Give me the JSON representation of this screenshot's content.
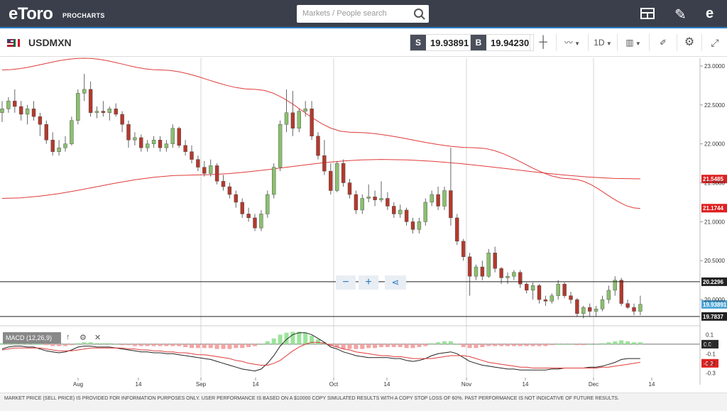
{
  "header": {
    "logo_text": "eToro",
    "logo_sub": "PROCHARTS",
    "search_placeholder": "Markets / People search"
  },
  "toolbar": {
    "symbol": "USDMXN",
    "sell_tag": "S",
    "sell_price": "19.93891",
    "buy_tag": "B",
    "buy_price": "19.94230",
    "timeframe": "1D"
  },
  "zoom": {
    "minus": "−",
    "plus": "+"
  },
  "macd": {
    "label": "MACD (12,26,9)"
  },
  "colors": {
    "up": "#8bbf6f",
    "down": "#b23a2e",
    "ma": "#e03a3a",
    "accent": "#2b7cc4"
  },
  "chart_data": {
    "type": "candlestick",
    "title": "USDMXN",
    "x_ticks": [
      "Aug",
      "14",
      "Sep",
      "14",
      "Oct",
      "14",
      "Nov",
      "14",
      "Dec",
      "14"
    ],
    "y_ticks": [
      "23.0000",
      "22.5000",
      "22.0000",
      "21.5000",
      "21.0000",
      "20.5000",
      "20.0000"
    ],
    "y_range": [
      19.7,
      23.1
    ],
    "price_labels": [
      {
        "value": "21.5485",
        "color": "#e02020"
      },
      {
        "value": "21.1744",
        "color": "#e02020"
      },
      {
        "value": "20.2296",
        "color": "#222"
      },
      {
        "value": "19.93891",
        "color": "#4aa3d6"
      },
      {
        "value": "19.7837",
        "color": "#222"
      }
    ],
    "hlines": [
      20.2296,
      19.7837
    ],
    "macd_ticks": [
      "0.1",
      "0.0",
      "-0.1",
      "-0.2",
      "-0.3"
    ],
    "macd_range": [
      -0.35,
      0.17
    ],
    "macd_labels": [
      {
        "value": "0.0",
        "color": "#fff",
        "bg": "#2a2a2a"
      },
      {
        "value": "-0.2",
        "color": "#fff",
        "bg": "#e02020"
      }
    ],
    "candles": [
      [
        22.4,
        22.55,
        22.28,
        22.45
      ],
      [
        22.45,
        22.6,
        22.4,
        22.55
      ],
      [
        22.55,
        22.7,
        22.4,
        22.48
      ],
      [
        22.48,
        22.55,
        22.3,
        22.38
      ],
      [
        22.38,
        22.5,
        22.25,
        22.45
      ],
      [
        22.45,
        22.55,
        22.3,
        22.35
      ],
      [
        22.35,
        22.4,
        22.1,
        22.25
      ],
      [
        22.25,
        22.3,
        22.0,
        22.05
      ],
      [
        22.05,
        22.15,
        21.85,
        21.9
      ],
      [
        21.9,
        22.05,
        21.85,
        21.95
      ],
      [
        21.95,
        22.1,
        21.9,
        22.0
      ],
      [
        22.0,
        22.35,
        21.98,
        22.3
      ],
      [
        22.3,
        22.7,
        22.25,
        22.65
      ],
      [
        22.65,
        22.9,
        22.55,
        22.7
      ],
      [
        22.7,
        22.8,
        22.35,
        22.4
      ],
      [
        22.4,
        22.48,
        22.33,
        22.42
      ],
      [
        22.42,
        22.55,
        22.35,
        22.4
      ],
      [
        22.4,
        22.48,
        22.3,
        22.45
      ],
      [
        22.45,
        22.52,
        22.35,
        22.38
      ],
      [
        22.38,
        22.42,
        22.15,
        22.25
      ],
      [
        22.25,
        22.3,
        21.95,
        22.05
      ],
      [
        22.05,
        22.15,
        21.98,
        22.08
      ],
      [
        22.08,
        22.12,
        21.9,
        21.95
      ],
      [
        21.95,
        22.05,
        21.9,
        22.0
      ],
      [
        22.0,
        22.1,
        21.95,
        22.05
      ],
      [
        22.05,
        22.1,
        21.9,
        21.95
      ],
      [
        21.95,
        22.05,
        21.9,
        22.0
      ],
      [
        22.0,
        22.25,
        21.95,
        22.2
      ],
      [
        22.2,
        22.22,
        21.95,
        21.98
      ],
      [
        21.98,
        22.05,
        21.85,
        21.9
      ],
      [
        21.9,
        21.98,
        21.75,
        21.8
      ],
      [
        21.8,
        21.85,
        21.65,
        21.7
      ],
      [
        21.7,
        21.78,
        21.58,
        21.62
      ],
      [
        21.62,
        21.8,
        21.58,
        21.72
      ],
      [
        21.72,
        21.75,
        21.48,
        21.52
      ],
      [
        21.52,
        21.6,
        21.4,
        21.45
      ],
      [
        21.45,
        21.5,
        21.3,
        21.35
      ],
      [
        21.35,
        21.4,
        21.18,
        21.25
      ],
      [
        21.25,
        21.3,
        21.05,
        21.1
      ],
      [
        21.1,
        21.18,
        21.0,
        21.05
      ],
      [
        21.05,
        21.1,
        20.88,
        20.92
      ],
      [
        20.92,
        21.15,
        20.88,
        21.1
      ],
      [
        21.1,
        21.4,
        21.05,
        21.35
      ],
      [
        21.35,
        21.75,
        21.3,
        21.7
      ],
      [
        21.7,
        22.3,
        21.65,
        22.25
      ],
      [
        22.25,
        22.7,
        22.15,
        22.4
      ],
      [
        22.4,
        22.68,
        22.1,
        22.2
      ],
      [
        22.2,
        22.45,
        22.15,
        22.42
      ],
      [
        22.42,
        22.55,
        22.35,
        22.45
      ],
      [
        22.45,
        22.55,
        22.05,
        22.1
      ],
      [
        22.1,
        22.15,
        21.8,
        21.85
      ],
      [
        21.85,
        22.05,
        21.6,
        21.65
      ],
      [
        21.65,
        21.75,
        21.35,
        21.4
      ],
      [
        21.4,
        21.78,
        21.38,
        21.75
      ],
      [
        21.75,
        21.8,
        21.45,
        21.5
      ],
      [
        21.5,
        21.55,
        21.3,
        21.35
      ],
      [
        21.35,
        21.4,
        21.1,
        21.15
      ],
      [
        21.15,
        21.35,
        21.1,
        21.3
      ],
      [
        21.3,
        21.48,
        21.25,
        21.32
      ],
      [
        21.32,
        21.4,
        21.2,
        21.28
      ],
      [
        21.28,
        21.52,
        21.25,
        21.3
      ],
      [
        21.3,
        21.38,
        21.15,
        21.2
      ],
      [
        21.2,
        21.25,
        21.05,
        21.1
      ],
      [
        21.1,
        21.22,
        21.05,
        21.15
      ],
      [
        21.15,
        21.18,
        20.95,
        21.0
      ],
      [
        21.0,
        21.05,
        20.85,
        20.9
      ],
      [
        20.9,
        21.05,
        20.85,
        21.0
      ],
      [
        21.0,
        21.3,
        20.95,
        21.25
      ],
      [
        21.25,
        21.4,
        21.2,
        21.35
      ],
      [
        21.35,
        21.45,
        21.15,
        21.2
      ],
      [
        21.2,
        21.45,
        21.15,
        21.4
      ],
      [
        21.4,
        21.95,
        20.95,
        21.05
      ],
      [
        21.05,
        21.1,
        20.7,
        20.75
      ],
      [
        20.75,
        20.78,
        20.5,
        20.55
      ],
      [
        20.55,
        20.6,
        20.05,
        20.3
      ],
      [
        20.3,
        20.45,
        20.25,
        20.42
      ],
      [
        20.42,
        20.5,
        20.25,
        20.3
      ],
      [
        20.3,
        20.65,
        20.28,
        20.6
      ],
      [
        20.6,
        20.68,
        20.35,
        20.4
      ],
      [
        20.4,
        20.42,
        20.2,
        20.28
      ],
      [
        20.28,
        20.35,
        20.2,
        20.3
      ],
      [
        20.3,
        20.38,
        20.25,
        20.35
      ],
      [
        20.35,
        20.38,
        20.15,
        20.2
      ],
      [
        20.2,
        20.22,
        20.08,
        20.12
      ],
      [
        20.12,
        20.22,
        20.0,
        20.18
      ],
      [
        20.18,
        20.2,
        19.95,
        20.0
      ],
      [
        20.0,
        20.05,
        19.92,
        19.98
      ],
      [
        19.98,
        20.08,
        19.95,
        20.05
      ],
      [
        20.05,
        20.25,
        20.0,
        20.2
      ],
      [
        20.2,
        20.22,
        20.02,
        20.05
      ],
      [
        20.05,
        20.1,
        19.95,
        20.0
      ],
      [
        20.0,
        20.02,
        19.78,
        19.82
      ],
      [
        19.82,
        19.92,
        19.76,
        19.9
      ],
      [
        19.9,
        19.95,
        19.78,
        19.85
      ],
      [
        19.85,
        19.92,
        19.78,
        19.88
      ],
      [
        19.88,
        20.05,
        19.85,
        20.0
      ],
      [
        20.0,
        20.18,
        19.95,
        20.12
      ],
      [
        20.12,
        20.3,
        20.05,
        20.25
      ],
      [
        20.25,
        20.28,
        19.92,
        19.95
      ],
      [
        19.95,
        20.0,
        19.88,
        19.9
      ],
      [
        19.9,
        19.95,
        19.8,
        19.85
      ],
      [
        19.85,
        20.05,
        19.8,
        19.94
      ]
    ],
    "ma_long": [
      [
        0,
        21.3
      ],
      [
        30,
        21.6
      ],
      [
        60,
        21.8
      ],
      [
        101,
        21.55
      ]
    ],
    "ma_200": [
      [
        0,
        22.95
      ],
      [
        13,
        23.1
      ],
      [
        25,
        22.95
      ],
      [
        40,
        22.7
      ],
      [
        55,
        22.15
      ],
      [
        75,
        21.95
      ],
      [
        90,
        21.55
      ],
      [
        101,
        21.17
      ]
    ],
    "macd_hist": [
      0.01,
      0.01,
      0.02,
      0.02,
      0.01,
      0.01,
      0.0,
      -0.01,
      -0.02,
      -0.02,
      -0.02,
      -0.01,
      0.01,
      0.02,
      0.02,
      0.01,
      0.01,
      0.01,
      0.0,
      -0.01,
      -0.01,
      -0.02,
      -0.02,
      -0.02,
      -0.02,
      -0.02,
      -0.02,
      -0.02,
      -0.02,
      -0.03,
      -0.04,
      -0.04,
      -0.04,
      -0.04,
      -0.05,
      -0.05,
      -0.05,
      -0.04,
      -0.04,
      -0.03,
      -0.02,
      0.0,
      0.03,
      0.06,
      0.1,
      0.12,
      0.13,
      0.13,
      0.12,
      0.09,
      0.05,
      0.02,
      -0.02,
      -0.03,
      -0.05,
      -0.05,
      -0.05,
      -0.05,
      -0.04,
      -0.04,
      -0.03,
      -0.03,
      -0.03,
      -0.03,
      -0.04,
      -0.04,
      -0.03,
      -0.02,
      0.01,
      0.02,
      0.03,
      0.03,
      0.0,
      -0.03,
      -0.04,
      -0.04,
      -0.03,
      -0.02,
      -0.02,
      -0.02,
      -0.02,
      -0.02,
      -0.02,
      -0.02,
      -0.02,
      -0.02,
      -0.02,
      -0.01,
      0.0,
      0.0,
      0.0,
      -0.01,
      -0.01,
      0.0,
      0.0,
      0.01,
      0.02,
      0.03,
      0.04,
      0.03,
      0.02,
      0.02
    ],
    "macd_line": [
      -0.05,
      -0.03,
      -0.02,
      -0.02,
      -0.03,
      -0.03,
      -0.05,
      -0.07,
      -0.08,
      -0.09,
      -0.08,
      -0.06,
      -0.03,
      -0.02,
      -0.02,
      -0.03,
      -0.03,
      -0.03,
      -0.04,
      -0.05,
      -0.06,
      -0.07,
      -0.08,
      -0.08,
      -0.09,
      -0.09,
      -0.1,
      -0.1,
      -0.11,
      -0.12,
      -0.13,
      -0.14,
      -0.15,
      -0.16,
      -0.18,
      -0.2,
      -0.22,
      -0.24,
      -0.26,
      -0.27,
      -0.28,
      -0.26,
      -0.2,
      -0.12,
      -0.02,
      0.05,
      0.1,
      0.12,
      0.12,
      0.1,
      0.06,
      0.02,
      -0.03,
      -0.05,
      -0.08,
      -0.1,
      -0.12,
      -0.13,
      -0.14,
      -0.14,
      -0.14,
      -0.14,
      -0.15,
      -0.15,
      -0.17,
      -0.18,
      -0.17,
      -0.15,
      -0.12,
      -0.1,
      -0.09,
      -0.08,
      -0.1,
      -0.14,
      -0.18,
      -0.2,
      -0.22,
      -0.23,
      -0.24,
      -0.25,
      -0.26,
      -0.26,
      -0.27,
      -0.27,
      -0.27,
      -0.27,
      -0.27,
      -0.26,
      -0.26,
      -0.25,
      -0.25,
      -0.25,
      -0.25,
      -0.24,
      -0.24,
      -0.23,
      -0.21,
      -0.19,
      -0.16,
      -0.15,
      -0.15,
      -0.15
    ],
    "signal_line": [
      -0.06,
      -0.05,
      -0.04,
      -0.04,
      -0.04,
      -0.04,
      -0.04,
      -0.05,
      -0.06,
      -0.07,
      -0.07,
      -0.07,
      -0.06,
      -0.05,
      -0.04,
      -0.04,
      -0.04,
      -0.04,
      -0.04,
      -0.04,
      -0.05,
      -0.05,
      -0.06,
      -0.06,
      -0.07,
      -0.07,
      -0.08,
      -0.08,
      -0.09,
      -0.09,
      -0.1,
      -0.11,
      -0.11,
      -0.12,
      -0.13,
      -0.14,
      -0.15,
      -0.17,
      -0.18,
      -0.2,
      -0.21,
      -0.22,
      -0.22,
      -0.2,
      -0.17,
      -0.12,
      -0.07,
      -0.03,
      0.0,
      0.02,
      0.02,
      0.01,
      -0.01,
      -0.03,
      -0.05,
      -0.06,
      -0.08,
      -0.09,
      -0.1,
      -0.11,
      -0.12,
      -0.12,
      -0.13,
      -0.13,
      -0.14,
      -0.15,
      -0.15,
      -0.15,
      -0.15,
      -0.14,
      -0.13,
      -0.12,
      -0.12,
      -0.12,
      -0.13,
      -0.15,
      -0.17,
      -0.19,
      -0.2,
      -0.21,
      -0.22,
      -0.23,
      -0.24,
      -0.24,
      -0.25,
      -0.25,
      -0.25,
      -0.25,
      -0.25,
      -0.25,
      -0.25,
      -0.25,
      -0.25,
      -0.25,
      -0.25,
      -0.24,
      -0.24,
      -0.23,
      -0.22,
      -0.21,
      -0.2,
      -0.19
    ]
  },
  "footer": {
    "disclaimer": "MARKET PRICE (SELL PRICE) IS PROVIDED FOR INFORMATION PURPOSES ONLY. USER PERFORMANCE IS BASED ON A $10000 COPY SIMULATED RESULTS WITH A COPY STOP LOSS OF 60%. PAST PERFORMANCE IS NOT INDICATIVE OF FUTURE RESULTS."
  }
}
